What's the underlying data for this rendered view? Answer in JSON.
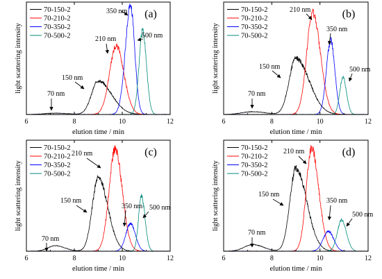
{
  "figure": {
    "colors": {
      "70-150-2": "#000000",
      "70-210-2": "#ff0000",
      "70-350-2": "#0000ff",
      "70-500-2": "#008b7a",
      "axis": "#000000"
    }
  },
  "chart_data": [
    {
      "panel_label": "(a)",
      "type": "line",
      "xlabel": "elution time / min",
      "ylabel": "light scattering intensity",
      "xlim": [
        6,
        12
      ],
      "xticks": [
        6,
        8,
        10,
        12
      ],
      "legend": {
        "placement": "top-left",
        "entries": [
          "70-150-2",
          "70-210-2",
          "70-350-2",
          "70-500-2"
        ]
      },
      "series": [
        {
          "name": "70-150-2",
          "color": "#000000",
          "peaks": [
            {
              "center": 7.2,
              "height": 0.012,
              "sl": 0.45,
              "sr": 0.55
            },
            {
              "center": 9.0,
              "height": 0.3,
              "sl": 0.28,
              "sr": 0.55
            }
          ]
        },
        {
          "name": "70-210-2",
          "color": "#ff0000",
          "peaks": [
            {
              "center": 9.75,
              "height": 0.61,
              "sl": 0.28,
              "sr": 0.32
            }
          ]
        },
        {
          "name": "70-350-2",
          "color": "#0000ff",
          "peaks": [
            {
              "center": 10.35,
              "height": 0.97,
              "sl": 0.22,
              "sr": 0.17
            }
          ]
        },
        {
          "name": "70-500-2",
          "color": "#008b7a",
          "peaks": [
            {
              "center": 10.85,
              "height": 0.74,
              "sl": 0.15,
              "sr": 0.16
            }
          ]
        }
      ],
      "annotations": [
        "70 nm",
        "150 nm",
        "210 nm",
        "350 nm",
        "500 nm"
      ]
    },
    {
      "panel_label": "(b)",
      "type": "line",
      "xlabel": "elution time / min",
      "ylabel": "light scattering intensity",
      "xlim": [
        6,
        12
      ],
      "xticks": [
        6,
        8,
        10,
        12
      ],
      "legend": {
        "placement": "top-left",
        "entries": [
          "70-150-2",
          "70-210-2",
          "70-350-2",
          "70-500-2"
        ]
      },
      "series": [
        {
          "name": "70-150-2",
          "color": "#000000",
          "peaks": [
            {
              "center": 7.2,
              "height": 0.025,
              "sl": 0.45,
              "sr": 0.55
            },
            {
              "center": 9.0,
              "height": 0.5,
              "sl": 0.28,
              "sr": 0.55
            }
          ]
        },
        {
          "name": "70-210-2",
          "color": "#ff0000",
          "peaks": [
            {
              "center": 9.7,
              "height": 0.9,
              "sl": 0.25,
              "sr": 0.32
            }
          ]
        },
        {
          "name": "70-350-2",
          "color": "#0000ff",
          "peaks": [
            {
              "center": 10.45,
              "height": 0.66,
              "sl": 0.18,
              "sr": 0.17
            }
          ]
        },
        {
          "name": "70-500-2",
          "color": "#008b7a",
          "peaks": [
            {
              "center": 10.95,
              "height": 0.33,
              "sl": 0.13,
              "sr": 0.15
            }
          ]
        }
      ],
      "annotations": [
        "70 nm",
        "150 nm",
        "210 nm",
        "350 nm",
        "500 nm"
      ]
    },
    {
      "panel_label": "(c)",
      "type": "line",
      "xlabel": "elution time / min",
      "ylabel": "light scattering intensity",
      "xlim": [
        6,
        12
      ],
      "xticks": [
        6,
        8,
        10,
        12
      ],
      "legend": {
        "placement": "top-left",
        "entries": [
          "70-150-2",
          "70-210-2",
          "70-350-2",
          "70-500-2"
        ]
      },
      "series": [
        {
          "name": "70-150-2",
          "color": "#000000",
          "peaks": [
            {
              "center": 7.2,
              "height": 0.05,
              "sl": 0.3,
              "sr": 0.4
            },
            {
              "center": 9.0,
              "height": 0.66,
              "sl": 0.25,
              "sr": 0.4
            }
          ]
        },
        {
          "name": "70-210-2",
          "color": "#ff0000",
          "peaks": [
            {
              "center": 9.7,
              "height": 0.92,
              "sl": 0.25,
              "sr": 0.3
            }
          ]
        },
        {
          "name": "70-350-2",
          "color": "#0000ff",
          "peaks": [
            {
              "center": 10.35,
              "height": 0.25,
              "sl": 0.2,
              "sr": 0.2
            }
          ]
        },
        {
          "name": "70-500-2",
          "color": "#008b7a",
          "peaks": [
            {
              "center": 10.8,
              "height": 0.5,
              "sl": 0.12,
              "sr": 0.15
            }
          ]
        }
      ],
      "annotations": [
        "70 nm",
        "150 nm",
        "210 nm",
        "350 nm",
        "500 nm"
      ]
    },
    {
      "panel_label": "(d)",
      "type": "line",
      "xlabel": "elution time / min",
      "ylabel": "light scattering intensity",
      "xlim": [
        6,
        12
      ],
      "xticks": [
        6,
        8,
        10,
        12
      ],
      "legend": {
        "placement": "top-left",
        "entries": [
          "70-150-2",
          "70-210-2",
          "70-350-2",
          "70-500-2"
        ]
      },
      "series": [
        {
          "name": "70-150-2",
          "color": "#000000",
          "peaks": [
            {
              "center": 7.2,
              "height": 0.06,
              "sl": 0.35,
              "sr": 0.45
            },
            {
              "center": 9.0,
              "height": 0.75,
              "sl": 0.25,
              "sr": 0.45
            }
          ]
        },
        {
          "name": "70-210-2",
          "color": "#ff0000",
          "peaks": [
            {
              "center": 9.65,
              "height": 0.93,
              "sl": 0.22,
              "sr": 0.3
            }
          ]
        },
        {
          "name": "70-350-2",
          "color": "#0000ff",
          "peaks": [
            {
              "center": 10.35,
              "height": 0.18,
              "sl": 0.22,
              "sr": 0.22
            }
          ]
        },
        {
          "name": "70-500-2",
          "color": "#008b7a",
          "peaks": [
            {
              "center": 10.9,
              "height": 0.28,
              "sl": 0.18,
              "sr": 0.2
            }
          ]
        }
      ],
      "annotations": [
        "70 nm",
        "150 nm",
        "210 nm",
        "350 nm",
        "500 nm"
      ]
    }
  ]
}
